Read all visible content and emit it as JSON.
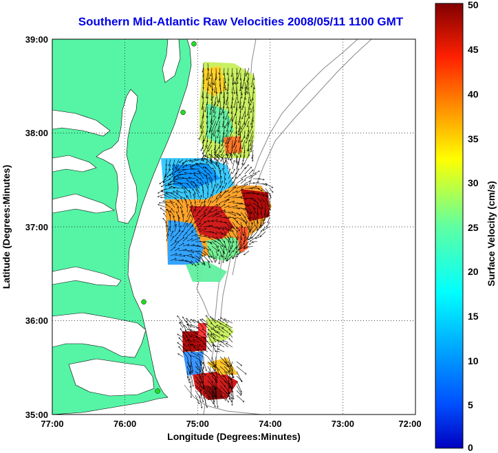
{
  "title": "Southern Mid-Atlantic Raw Velocities 2008/05/11 1100 GMT",
  "xlabel": "Longitude (Degrees:Minutes)",
  "ylabel": "Latitude (Degrees:Minutes)",
  "colorbar_label": "Surface Velocity (cm/s)",
  "colors": {
    "land": "#55f5a5",
    "water": "#ffffff",
    "title": "#0000e6",
    "station": "#22dd22",
    "vector": "#000000",
    "bathymetry": "#888888"
  },
  "x_ticks": [
    "77:00",
    "76:00",
    "75:00",
    "74:00",
    "73:00",
    "72:00"
  ],
  "y_ticks": [
    "35:00",
    "36:00",
    "37:00",
    "38:00",
    "39:00"
  ],
  "colorbar_ticks": [
    "0",
    "5",
    "10",
    "15",
    "20",
    "25",
    "30",
    "35",
    "40",
    "45",
    "50"
  ],
  "map_extent": {
    "lon": [
      -77,
      -72
    ],
    "lat": [
      35,
      39
    ]
  },
  "colorbar_range": [
    0,
    50
  ],
  "colormap": "jet",
  "grid": "dotted",
  "stations": [
    {
      "lon": -75.05,
      "lat": 38.95
    },
    {
      "lon": -75.2,
      "lat": 38.22
    },
    {
      "lon": -75.74,
      "lat": 36.2
    },
    {
      "lon": -75.55,
      "lat": 35.25
    }
  ]
}
